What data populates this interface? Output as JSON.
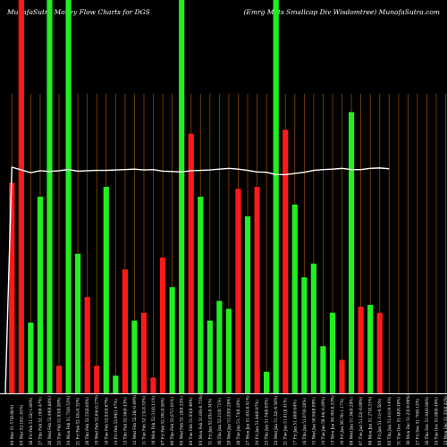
{
  "header": {
    "left": "MunafaSutra  Money Flow  Charts for DGS",
    "right": "(Emrg Mkts Smallcap Div Wisdomtree) MunafaSutra.com"
  },
  "colors": {
    "background": "#000000",
    "up": "#22ee22",
    "down": "#ff1a1a",
    "gridline": "#8a4a00",
    "line": "#ffffff",
    "axis": "#ffffff"
  },
  "chart_data": {
    "type": "bar",
    "title": "MunafaSutra  Money Flow  Charts for DGS",
    "subtitle": "(Emrg Mkts Smallcap Div Wisdomtree) MunafaSutra.com",
    "ylim": [
      0,
      100
    ],
    "grid": true,
    "categories": [
      "04 Mar 51.57(0.06%)",
      "03 Mar 52.16(1.63%)",
      "28 Fri Feb 51.32(-1.68%)",
      "27 Thu Feb 52.19(0.47%)",
      "26 Wed Feb 52.49(0.88%)",
      "25 Tue Feb 51.03(0.26%)",
      "24 Mon Feb 51.72(0.53%)",
      "21 Fri Feb 52.45(-0.32%)",
      "20 Thu Feb 52.55(0.05%)",
      "19 Wed Feb 52.64(-0.27%)",
      "18 Tue Feb 52.82(0.67%)",
      "14 Fri Feb 52.94(1.47%)",
      "13 Thu Feb 52.56(0.43%)",
      "12 Wed Feb 52.36(-0.49%)",
      "11 Tue Feb 52.13(-0.33%)",
      "10 Mon Feb 52.31(0.11%)",
      "07 Fri Feb 52.39(-0.48%)",
      "06 Thu Feb 52.67(1.01%)",
      "05 Wed Feb 52.10(0.25%)",
      "04 Tue Feb 51.93(0.46%)",
      "03 Mon Feb 51.69(-0.75%)",
      "31 Fri Jan 52.03(-0.34%)",
      "30 Thu Jan 52.21(0.71%)",
      "29 Wed Jan 51.83(0.26%)",
      "28 Tue Jan 51.73(0.18%)",
      "27 Mon Jan 51.63(-0.41%)",
      "24 Fri Jan 51.84(0.97%)",
      "23 Thu Jan 51.34(0.03%)",
      "22 Wed Jan 51.32(-0.56%)",
      "21 Tue Jan 51.61(0.41%)",
      "17 Fri Jan 51.40(0.64%)",
      "16 Thu Jan 51.07(0.26%)",
      "15 Wed Jan 50.94(0.99%)",
      "14 Tue Jan 50.44(-0.29%)",
      "13 Mon Jan 50.59(-0.33%)",
      "10 Fri Jan 50.76(-1.17%)",
      "08 Wed Jan 51.36(0.28%)",
      "07 Tue Jan 51.22(-0.09%)",
      "06 Mon Jan 51.27(0.31%)",
      "03 Fri Jan 51.11(-0.58%)",
      "02 Thu Jan 51.41(-0.14%)",
      "31 Tue Dec 51.48(0.49%)",
      "30 Mon Dec 51.23(-0.90%)",
      "27 Fri Dec 51.70(0.12%)",
      "26 Thu Dec 51.64(0.08%)",
      "24 Tue Dec 51.60(0.49%)",
      "23 Mon Dec 51.35(0.22%)"
    ],
    "series": [
      {
        "values": [
          53.5,
          100,
          18,
          50,
          100,
          7,
          100,
          35.5,
          24.5,
          7,
          52.5,
          4.5,
          31.5,
          18.5,
          20.5,
          4,
          34.5,
          27,
          100,
          66,
          50,
          18.5,
          23.5,
          21.5,
          52,
          45,
          52.5,
          5.5,
          100,
          67,
          48,
          29.5,
          33,
          12,
          20.5,
          8.5,
          71.5,
          22,
          22.5,
          20.5,
          0,
          0,
          0,
          0,
          0,
          0,
          0
        ],
        "directions": [
          "down",
          "down",
          "up",
          "up",
          "up",
          "down",
          "up",
          "up",
          "down",
          "down",
          "up",
          "up",
          "down",
          "up",
          "down",
          "down",
          "down",
          "up",
          "up",
          "down",
          "up",
          "up",
          "up",
          "up",
          "down",
          "up",
          "down",
          "up",
          "up",
          "down",
          "up",
          "up",
          "up",
          "up",
          "up",
          "down",
          "up",
          "down",
          "up",
          "down",
          "up",
          "down",
          "up",
          "down",
          "up",
          "down",
          "up"
        ]
      }
    ],
    "line_values": [
      57.5,
      56.8,
      56.1,
      56.6,
      56.4,
      56.6,
      56.9,
      56.5,
      56.6,
      56.7,
      56.7,
      56.8,
      56.9,
      57.0,
      56.8,
      56.9,
      56.5,
      56.4,
      56.3,
      56.6,
      56.7,
      56.8,
      57.0,
      57.2,
      57.0,
      56.7,
      56.3,
      56.2,
      55.6,
      55.6,
      55.9,
      56.2,
      56.7,
      56.9,
      57.0,
      57.2,
      56.9,
      56.9,
      57.2,
      57.3,
      57.1
    ]
  }
}
